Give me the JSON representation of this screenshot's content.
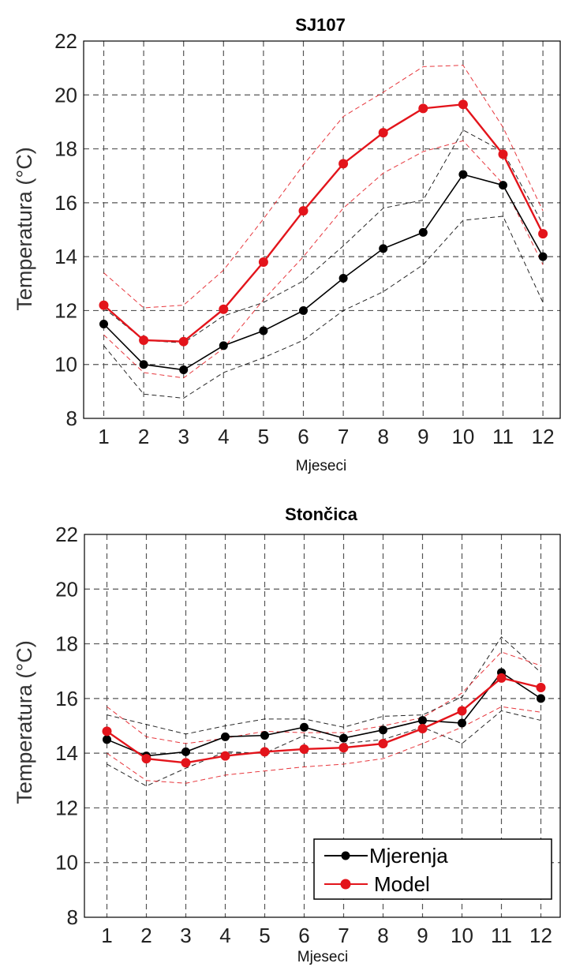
{
  "colors": {
    "measurement": "#000000",
    "model": "#e3141b",
    "grid": "#555555",
    "axes": "#000000"
  },
  "legend": {
    "items": [
      "Mjerenja",
      "Model"
    ],
    "placement": "lower-right (bottom panel only)"
  },
  "chart_data": [
    {
      "type": "line",
      "title": "SJ107",
      "xlabel": "Mjeseci",
      "ylabel": "Temperatura (°C)",
      "x": [
        1,
        2,
        3,
        4,
        5,
        6,
        7,
        8,
        9,
        10,
        11,
        12
      ],
      "xticks": [
        "1",
        "2",
        "3",
        "4",
        "5",
        "6",
        "7",
        "8",
        "9",
        "10",
        "11",
        "12"
      ],
      "ylim": [
        8,
        22
      ],
      "yticks": [
        "8",
        "10",
        "12",
        "14",
        "16",
        "18",
        "20",
        "22"
      ],
      "grid": true,
      "series": [
        {
          "name": "Mjerenja",
          "color": "#000000",
          "style": "solid-marker",
          "values": [
            11.5,
            10.0,
            9.8,
            10.7,
            11.25,
            12.0,
            13.2,
            14.3,
            14.9,
            17.05,
            16.65,
            14.0
          ]
        },
        {
          "name": "Model",
          "color": "#e3141b",
          "style": "solid-marker",
          "values": [
            12.2,
            10.9,
            10.85,
            12.05,
            13.8,
            15.7,
            17.45,
            18.6,
            19.5,
            19.65,
            17.8,
            14.85
          ]
        }
      ],
      "bands": [
        {
          "color": "#000000",
          "upper": [
            12.1,
            10.9,
            10.8,
            11.8,
            12.3,
            13.1,
            14.4,
            15.8,
            16.1,
            18.7,
            17.9,
            15.2
          ],
          "lower": [
            10.7,
            8.9,
            8.75,
            9.7,
            10.25,
            10.9,
            12.0,
            12.7,
            13.7,
            15.35,
            15.5,
            12.3
          ]
        },
        {
          "color": "#e3141b",
          "upper": [
            13.4,
            12.1,
            12.2,
            13.5,
            15.4,
            17.4,
            19.2,
            20.1,
            21.05,
            21.1,
            18.8,
            15.7
          ],
          "lower": [
            11.1,
            9.7,
            9.5,
            10.6,
            12.4,
            14.0,
            15.8,
            17.1,
            17.9,
            18.3,
            16.7,
            13.7
          ]
        }
      ]
    },
    {
      "type": "line",
      "title": "Stončica",
      "xlabel": "Mjeseci",
      "ylabel": "Temperatura (°C)",
      "x": [
        1,
        2,
        3,
        4,
        5,
        6,
        7,
        8,
        9,
        10,
        11,
        12
      ],
      "xticks": [
        "1",
        "2",
        "3",
        "4",
        "5",
        "6",
        "7",
        "8",
        "9",
        "10",
        "11",
        "12"
      ],
      "ylim": [
        8,
        22
      ],
      "yticks": [
        "8",
        "10",
        "12",
        "14",
        "16",
        "18",
        "20",
        "22"
      ],
      "grid": true,
      "series": [
        {
          "name": "Mjerenja",
          "color": "#000000",
          "style": "solid-marker",
          "values": [
            14.5,
            13.9,
            14.05,
            14.6,
            14.65,
            14.95,
            14.55,
            14.85,
            15.2,
            15.1,
            16.95,
            16.0
          ]
        },
        {
          "name": "Model",
          "color": "#e3141b",
          "style": "solid-marker",
          "values": [
            14.8,
            13.8,
            13.65,
            13.9,
            14.05,
            14.15,
            14.2,
            14.35,
            14.9,
            15.55,
            16.75,
            16.4
          ]
        }
      ],
      "bands": [
        {
          "color": "#000000",
          "upper": [
            15.4,
            15.05,
            14.7,
            15.0,
            15.25,
            15.25,
            14.95,
            15.35,
            15.4,
            16.05,
            18.25,
            16.95
          ],
          "lower": [
            13.6,
            12.8,
            13.45,
            14.05,
            14.0,
            14.65,
            14.35,
            14.5,
            14.95,
            14.35,
            15.55,
            15.2
          ]
        },
        {
          "color": "#e3141b",
          "upper": [
            15.7,
            14.6,
            14.35,
            14.55,
            14.8,
            14.75,
            14.75,
            15.0,
            15.3,
            16.2,
            17.7,
            17.2
          ],
          "lower": [
            14.0,
            13.0,
            12.9,
            13.2,
            13.35,
            13.5,
            13.6,
            13.8,
            14.35,
            14.95,
            15.7,
            15.5
          ]
        }
      ]
    }
  ]
}
